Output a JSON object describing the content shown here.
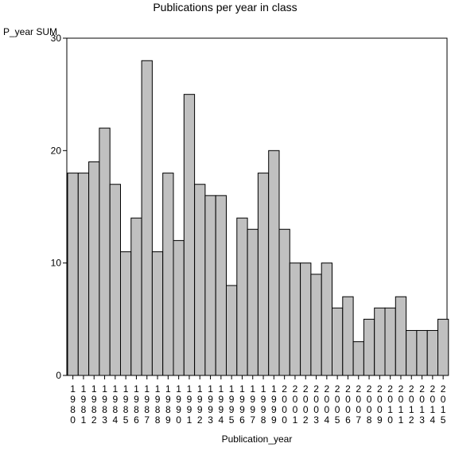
{
  "chart_data": {
    "type": "bar",
    "title": "Publications per year in class",
    "xlabel": "Publication_year",
    "ylabel": "P_year SUM",
    "ylim": [
      0,
      30
    ],
    "yticks": [
      0,
      10,
      20,
      30
    ],
    "grid": false,
    "colors": {
      "bar_fill": "#c0c0c0",
      "bar_stroke": "#000000"
    },
    "categories": [
      "1980",
      "1981",
      "1982",
      "1983",
      "1984",
      "1985",
      "1986",
      "1987",
      "1988",
      "1989",
      "1990",
      "1991",
      "1992",
      "1993",
      "1994",
      "1995",
      "1996",
      "1997",
      "1998",
      "1999",
      "2000",
      "2001",
      "2002",
      "2003",
      "2004",
      "2005",
      "2006",
      "2007",
      "2008",
      "2009",
      "2010",
      "2011",
      "2012",
      "2013",
      "2014",
      "2015"
    ],
    "values": [
      18,
      18,
      19,
      22,
      17,
      11,
      14,
      28,
      11,
      18,
      12,
      25,
      17,
      16,
      16,
      8,
      14,
      13,
      18,
      20,
      13,
      10,
      10,
      9,
      10,
      6,
      7,
      3,
      5,
      6,
      6,
      7,
      4,
      4,
      4,
      5
    ]
  }
}
